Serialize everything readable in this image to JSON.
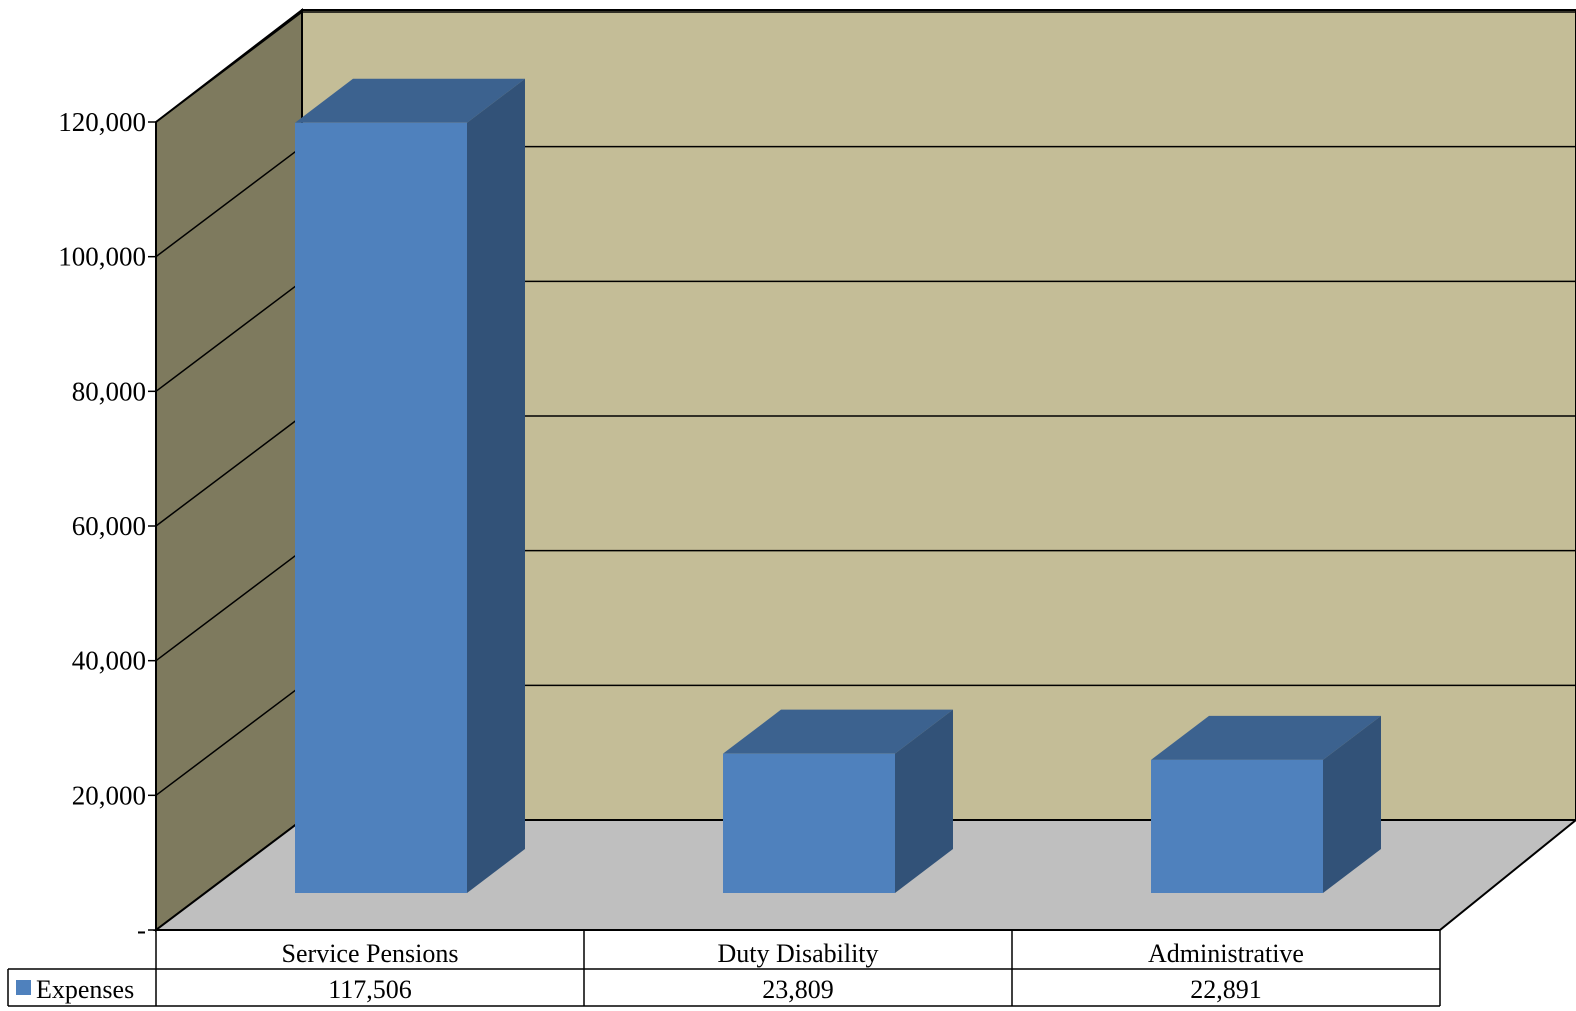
{
  "chart_data": {
    "type": "bar",
    "style": "3d-column-with-data-table",
    "categories": [
      "Service Pensions",
      "Duty Disability",
      "Administrative"
    ],
    "series": [
      {
        "name": "Expenses",
        "values": [
          117506,
          23809,
          22891
        ],
        "value_labels": [
          "117,506",
          "23,809",
          "22,891"
        ]
      }
    ],
    "ylim": [
      0,
      120000
    ],
    "yticks": [
      0,
      20000,
      40000,
      60000,
      80000,
      100000,
      120000
    ],
    "ytick_labels": [
      "-",
      "20,000",
      "40,000",
      "60,000",
      "80,000",
      "100,000",
      "120,000"
    ],
    "grid": true,
    "legend": "data-table",
    "colors": {
      "bar_front": "#4f81bd",
      "bar_top": "#3c628f",
      "bar_side": "#325278",
      "back_wall": "#c4bd97",
      "side_wall": "#7e7a5e",
      "floor": "#bfbfbf",
      "lines": "#000000"
    }
  }
}
